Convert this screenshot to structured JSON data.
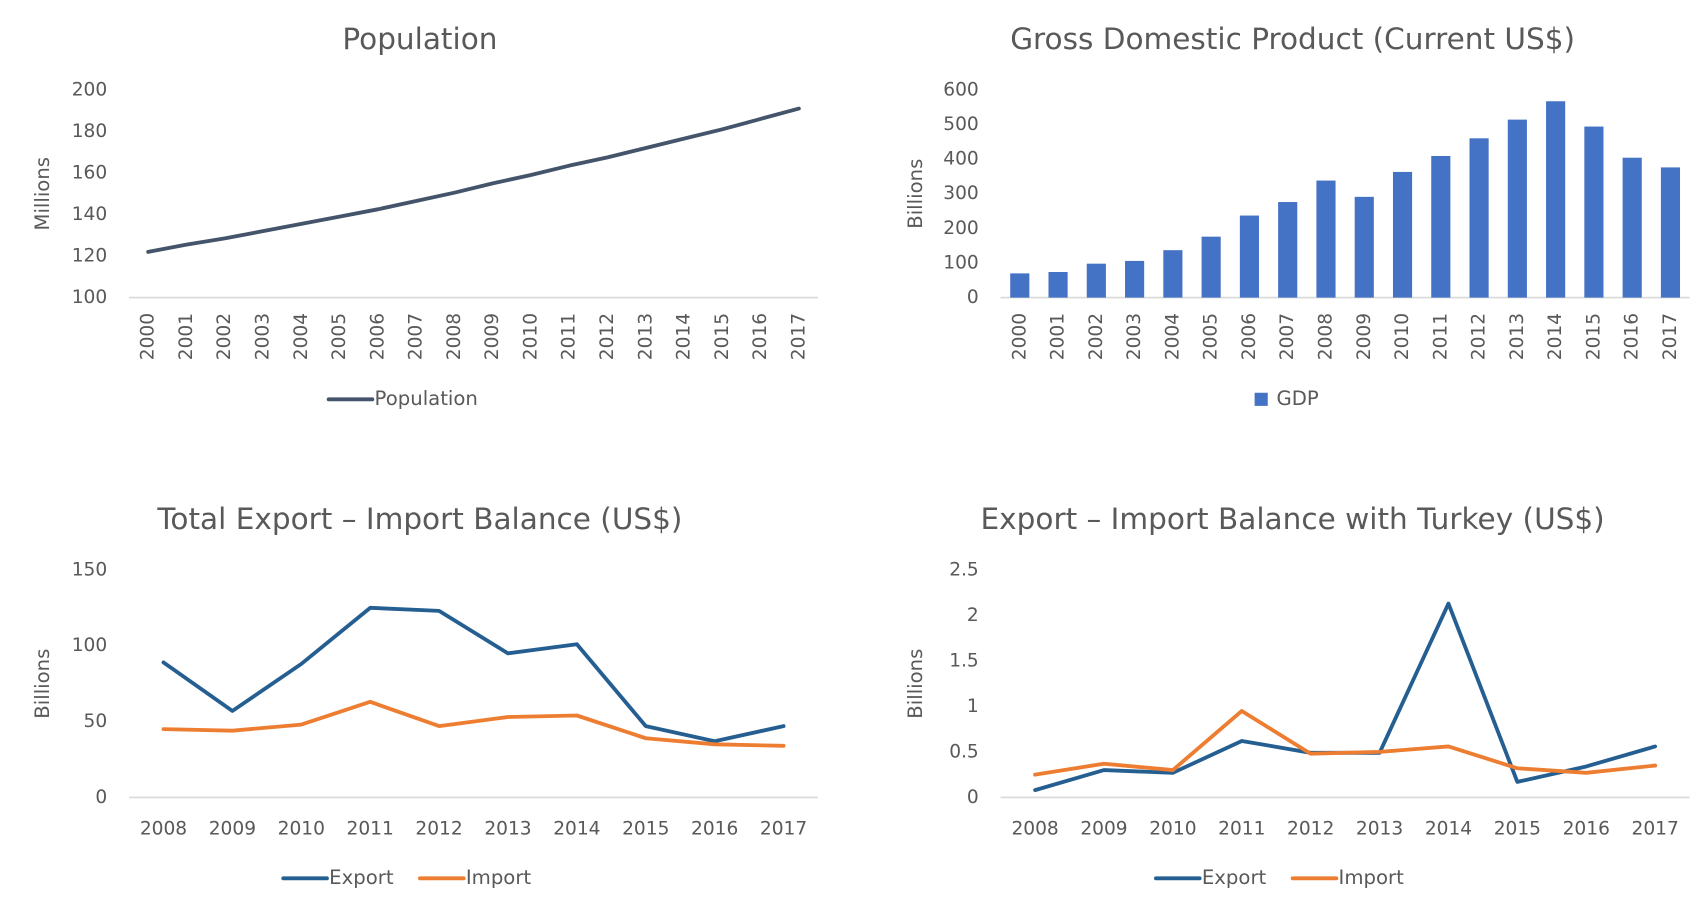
{
  "chart_data": [
    {
      "type": "line",
      "title": "Population",
      "y_label": "Millions",
      "categories": [
        "2000",
        "2001",
        "2002",
        "2003",
        "2004",
        "2005",
        "2006",
        "2007",
        "2008",
        "2009",
        "2010",
        "2011",
        "2012",
        "2013",
        "2014",
        "2015",
        "2016",
        "2017"
      ],
      "series": [
        {
          "name": "Population",
          "color": "#44546a",
          "values": [
            122,
            125.5,
            128.5,
            132,
            135.5,
            139,
            142.5,
            146.5,
            150.5,
            155,
            159,
            163.5,
            167.5,
            172,
            176.5,
            181,
            186,
            191
          ]
        }
      ],
      "ylim": [
        100,
        200
      ],
      "yticks": [
        100,
        120,
        140,
        160,
        180,
        200
      ],
      "grid": false
    },
    {
      "type": "bar",
      "title": "Gross Domestic Product (Current US$)",
      "y_label": "Billions",
      "categories": [
        "2000",
        "2001",
        "2002",
        "2003",
        "2004",
        "2005",
        "2006",
        "2007",
        "2008",
        "2009",
        "2010",
        "2011",
        "2012",
        "2013",
        "2014",
        "2015",
        "2016",
        "2017"
      ],
      "series": [
        {
          "name": "GDP",
          "color": "#4472c4",
          "values": [
            70,
            74,
            98,
            106,
            137,
            176,
            237,
            276,
            338,
            291,
            363,
            409,
            460,
            514,
            567,
            494,
            404,
            376
          ]
        }
      ],
      "ylim": [
        0,
        600
      ],
      "yticks": [
        0,
        100,
        200,
        300,
        400,
        500,
        600
      ],
      "grid": false
    },
    {
      "type": "line",
      "title": "Total Export – Import Balance (US$)",
      "y_label": "Billions",
      "categories": [
        "2008",
        "2009",
        "2010",
        "2011",
        "2012",
        "2013",
        "2014",
        "2015",
        "2016",
        "2017"
      ],
      "series": [
        {
          "name": "Export",
          "color": "#255e91",
          "values": [
            89,
            57,
            88,
            125,
            123,
            95,
            101,
            47,
            37,
            47
          ]
        },
        {
          "name": "Import",
          "color": "#ed7d31",
          "values": [
            45,
            44,
            48,
            63,
            47,
            53,
            54,
            39,
            35,
            34
          ]
        }
      ],
      "ylim": [
        0,
        150
      ],
      "yticks": [
        0,
        50,
        100,
        150
      ],
      "grid": false
    },
    {
      "type": "line",
      "title": "Export – Import Balance with Turkey (US$)",
      "y_label": "Billions",
      "categories": [
        "2008",
        "2009",
        "2010",
        "2011",
        "2012",
        "2013",
        "2014",
        "2015",
        "2016",
        "2017"
      ],
      "series": [
        {
          "name": "Export",
          "color": "#255e91",
          "values": [
            0.08,
            0.3,
            0.27,
            0.62,
            0.49,
            0.49,
            2.13,
            0.17,
            0.34,
            0.56
          ]
        },
        {
          "name": "Import",
          "color": "#ed7d31",
          "values": [
            0.25,
            0.37,
            0.3,
            0.95,
            0.48,
            0.5,
            0.56,
            0.32,
            0.27,
            0.35
          ]
        }
      ],
      "ylim": [
        0,
        2.5
      ],
      "yticks": [
        0,
        0.5,
        1,
        1.5,
        2,
        2.5
      ],
      "grid": false
    }
  ]
}
